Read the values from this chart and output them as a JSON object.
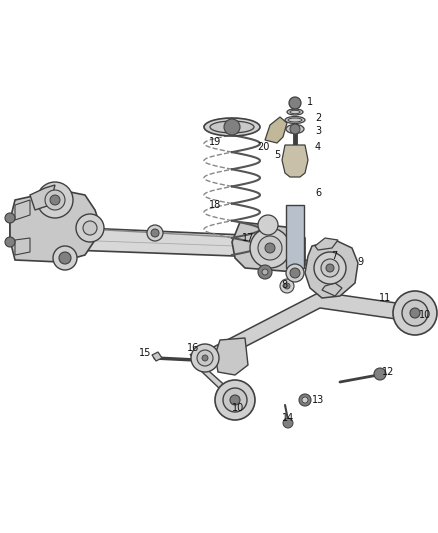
{
  "bg_color": "#ffffff",
  "fig_width": 4.38,
  "fig_height": 5.33,
  "dpi": 100,
  "line_color": "#404040",
  "dark_gray": "#505050",
  "mid_gray": "#808080",
  "light_gray": "#b0b0b0",
  "lighter_gray": "#d0d0d0",
  "part_fill": "#c8c8c8",
  "axle_fill": "#d8d8d8",
  "shock_fill": "#b8c0cc",
  "spring_color": "#555555",
  "label_color": "#111111",
  "label_fontsize": 7.0
}
